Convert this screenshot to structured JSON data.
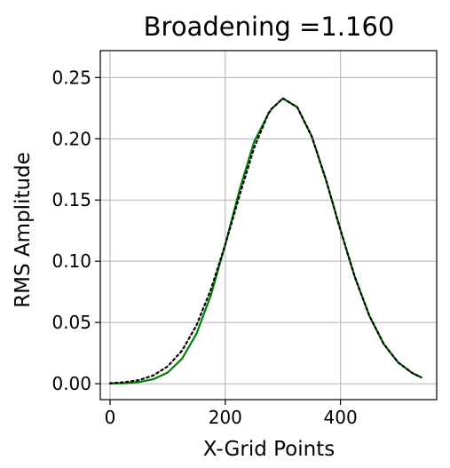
{
  "chart_data": {
    "type": "line",
    "title": "Broadening =1.160",
    "xlabel": "X-Grid Points",
    "ylabel": "RMS Amplitude",
    "xlim": [
      -17,
      567
    ],
    "ylim": [
      -0.013,
      0.272
    ],
    "xticks": [
      0,
      200,
      400
    ],
    "yticks": [
      0.0,
      0.05,
      0.1,
      0.15,
      0.2,
      0.25
    ],
    "xtick_labels": [
      "0",
      "200",
      "400"
    ],
    "ytick_labels": [
      "0.00",
      "0.05",
      "0.10",
      "0.15",
      "0.20",
      "0.25"
    ],
    "grid": true,
    "legend": "none",
    "x": [
      0,
      25,
      50,
      75,
      100,
      125,
      150,
      175,
      200,
      225,
      250,
      275,
      280,
      300,
      325,
      350,
      375,
      400,
      425,
      450,
      475,
      500,
      525,
      540
    ],
    "series": [
      {
        "color": "#008000",
        "style": "solid",
        "values": [
          0.0004,
          0.0012,
          0.0029,
          0.0067,
          0.0141,
          0.0271,
          0.0477,
          0.0769,
          0.1136,
          0.1543,
          0.1927,
          0.2209,
          0.2242,
          0.233,
          0.2258,
          0.202,
          0.1662,
          0.1255,
          0.0871,
          0.0555,
          0.0325,
          0.0174,
          0.0086,
          0.0052
        ]
      },
      {
        "color": "#008000",
        "style": "solid",
        "values": [
          0.0001,
          0.0004,
          0.0013,
          0.0036,
          0.0091,
          0.0205,
          0.0409,
          0.0723,
          0.1136,
          0.1587,
          0.1975,
          0.2205,
          0.2242,
          0.233,
          0.2258,
          0.202,
          0.1662,
          0.1255,
          0.0871,
          0.0555,
          0.0325,
          0.0174,
          0.0086,
          0.0052
        ]
      }
    ]
  }
}
